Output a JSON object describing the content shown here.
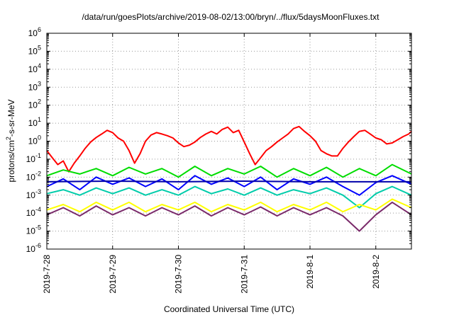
{
  "chart_data": {
    "type": "line",
    "title": "/data/run/goesPlots/archive/2019-08-02/13:00/bryn/../flux/5daysMoonFluxes.txt",
    "xlabel": "Coordinated Universal Time (UTC)",
    "ylabel_parts": {
      "base": "protons/cm",
      "sup": "2",
      "rest": "-s-sr-MeV"
    },
    "yscale": "log",
    "ylim": [
      1e-06,
      1000000.0
    ],
    "y_ticks": [
      {
        "value": 1e-06,
        "base": "10",
        "exp": "-6"
      },
      {
        "value": 1e-05,
        "base": "10",
        "exp": "-5"
      },
      {
        "value": 0.0001,
        "base": "10",
        "exp": "-4"
      },
      {
        "value": 0.001,
        "base": "10",
        "exp": "-3"
      },
      {
        "value": 0.01,
        "base": "10",
        "exp": "-2"
      },
      {
        "value": 0.1,
        "base": "10",
        "exp": "-1"
      },
      {
        "value": 1.0,
        "base": "10",
        "exp": "0"
      },
      {
        "value": 10.0,
        "base": "10",
        "exp": "1"
      },
      {
        "value": 100.0,
        "base": "10",
        "exp": "2"
      },
      {
        "value": 1000.0,
        "base": "10",
        "exp": "3"
      },
      {
        "value": 10000.0,
        "base": "10",
        "exp": "4"
      },
      {
        "value": 100000.0,
        "base": "10",
        "exp": "5"
      },
      {
        "value": 1000000.0,
        "base": "10",
        "exp": "6"
      }
    ],
    "xlim": [
      "2019-07-28",
      "2019-08-02 13:00"
    ],
    "x_ticks": [
      "2019-7-28",
      "2019-7-29",
      "2019-7-30",
      "2019-7-31",
      "2019-8-1",
      "2019-8-2"
    ],
    "grid": true,
    "series": [
      {
        "color": "#ff0000",
        "x": [
          "2019-07-28 00:00",
          "2019-07-28 02:00",
          "2019-07-28 04:00",
          "2019-07-28 06:00",
          "2019-07-28 08:00",
          "2019-07-28 10:00",
          "2019-07-28 12:00",
          "2019-07-28 14:00",
          "2019-07-28 16:00",
          "2019-07-28 18:00",
          "2019-07-28 20:00",
          "2019-07-28 22:00",
          "2019-07-29 00:00",
          "2019-07-29 02:00",
          "2019-07-29 04:00",
          "2019-07-29 06:00",
          "2019-07-29 08:00",
          "2019-07-29 10:00",
          "2019-07-29 12:00",
          "2019-07-29 14:00",
          "2019-07-29 16:00",
          "2019-07-29 18:00",
          "2019-07-29 20:00",
          "2019-07-29 22:00",
          "2019-07-30 00:00",
          "2019-07-30 02:00",
          "2019-07-30 04:00",
          "2019-07-30 06:00",
          "2019-07-30 08:00",
          "2019-07-30 10:00",
          "2019-07-30 12:00",
          "2019-07-30 14:00",
          "2019-07-30 16:00",
          "2019-07-30 18:00",
          "2019-07-30 20:00",
          "2019-07-30 22:00",
          "2019-07-31 00:00",
          "2019-07-31 02:00",
          "2019-07-31 04:00",
          "2019-07-31 06:00",
          "2019-07-31 08:00",
          "2019-07-31 10:00",
          "2019-07-31 12:00",
          "2019-07-31 14:00",
          "2019-07-31 16:00",
          "2019-07-31 18:00",
          "2019-07-31 20:00",
          "2019-07-31 22:00",
          "2019-08-01 00:00",
          "2019-08-01 02:00",
          "2019-08-01 04:00",
          "2019-08-01 06:00",
          "2019-08-01 08:00",
          "2019-08-01 10:00",
          "2019-08-01 12:00",
          "2019-08-01 14:00",
          "2019-08-01 16:00",
          "2019-08-01 18:00",
          "2019-08-01 20:00",
          "2019-08-01 22:00",
          "2019-08-02 00:00",
          "2019-08-02 02:00",
          "2019-08-02 04:00",
          "2019-08-02 06:00",
          "2019-08-02 08:00",
          "2019-08-02 10:00",
          "2019-08-02 12:00",
          "2019-08-02 13:00"
        ],
        "values": [
          0.3,
          0.12,
          0.05,
          0.08,
          0.02,
          0.06,
          0.15,
          0.4,
          0.9,
          1.6,
          2.5,
          4.0,
          3.0,
          1.5,
          1.0,
          0.3,
          0.06,
          0.2,
          1.0,
          2.2,
          3.0,
          2.5,
          2.0,
          1.5,
          0.8,
          0.5,
          0.6,
          0.9,
          1.6,
          2.5,
          3.5,
          2.5,
          4.5,
          6.0,
          3.0,
          4.0,
          0.9,
          0.2,
          0.05,
          0.12,
          0.3,
          0.5,
          0.9,
          1.5,
          2.5,
          5.0,
          6.5,
          3.5,
          2.0,
          1.0,
          0.3,
          0.2,
          0.15,
          0.15,
          0.4,
          0.9,
          1.8,
          3.5,
          4.0,
          2.5,
          1.5,
          1.2,
          0.7,
          0.8,
          1.2,
          1.8,
          2.5,
          3.5
        ]
      },
      {
        "color": "#00dd00",
        "x": [
          "2019-07-28 00:00",
          "2019-07-28 06:00",
          "2019-07-28 12:00",
          "2019-07-28 18:00",
          "2019-07-29 00:00",
          "2019-07-29 06:00",
          "2019-07-29 12:00",
          "2019-07-29 18:00",
          "2019-07-30 00:00",
          "2019-07-30 06:00",
          "2019-07-30 12:00",
          "2019-07-30 18:00",
          "2019-07-31 00:00",
          "2019-07-31 06:00",
          "2019-07-31 12:00",
          "2019-07-31 18:00",
          "2019-08-01 00:00",
          "2019-08-01 06:00",
          "2019-08-01 12:00",
          "2019-08-01 18:00",
          "2019-08-02 00:00",
          "2019-08-02 06:00",
          "2019-08-02 13:00"
        ],
        "values": [
          0.012,
          0.025,
          0.015,
          0.03,
          0.012,
          0.035,
          0.015,
          0.03,
          0.01,
          0.04,
          0.012,
          0.03,
          0.015,
          0.04,
          0.01,
          0.03,
          0.012,
          0.035,
          0.01,
          0.03,
          0.012,
          0.05,
          0.015
        ]
      },
      {
        "color": "#0000ff",
        "x": [
          "2019-07-28 00:00",
          "2019-07-28 06:00",
          "2019-07-28 12:00",
          "2019-07-28 18:00",
          "2019-07-29 00:00",
          "2019-07-29 06:00",
          "2019-07-29 12:00",
          "2019-07-29 18:00",
          "2019-07-30 00:00",
          "2019-07-30 06:00",
          "2019-07-30 12:00",
          "2019-07-30 18:00",
          "2019-07-31 00:00",
          "2019-07-31 06:00",
          "2019-07-31 12:00",
          "2019-07-31 18:00",
          "2019-08-01 00:00",
          "2019-08-01 06:00",
          "2019-08-01 12:00",
          "2019-08-01 18:00",
          "2019-08-02 00:00",
          "2019-08-02 06:00",
          "2019-08-02 13:00"
        ],
        "values": [
          0.003,
          0.008,
          0.002,
          0.01,
          0.004,
          0.009,
          0.003,
          0.008,
          0.002,
          0.012,
          0.004,
          0.009,
          0.003,
          0.01,
          0.002,
          0.008,
          0.004,
          0.01,
          0.003,
          0.001,
          0.005,
          0.012,
          0.004
        ]
      },
      {
        "color": "#0000aa",
        "x": [
          "2019-07-28 00:00",
          "2019-07-29 00:00",
          "2019-07-30 00:00",
          "2019-07-31 00:00",
          "2019-08-01 00:00",
          "2019-08-02 00:00",
          "2019-08-02 13:00"
        ],
        "values": [
          0.0055,
          0.006,
          0.0055,
          0.006,
          0.0055,
          0.0055,
          0.0055
        ]
      },
      {
        "color": "#00ccaa",
        "x": [
          "2019-07-28 00:00",
          "2019-07-28 06:00",
          "2019-07-28 12:00",
          "2019-07-28 18:00",
          "2019-07-29 00:00",
          "2019-07-29 06:00",
          "2019-07-29 12:00",
          "2019-07-29 18:00",
          "2019-07-30 00:00",
          "2019-07-30 06:00",
          "2019-07-30 12:00",
          "2019-07-30 18:00",
          "2019-07-31 00:00",
          "2019-07-31 06:00",
          "2019-07-31 12:00",
          "2019-07-31 18:00",
          "2019-08-01 00:00",
          "2019-08-01 06:00",
          "2019-08-01 12:00",
          "2019-08-01 18:00",
          "2019-08-02 00:00",
          "2019-08-02 06:00",
          "2019-08-02 13:00"
        ],
        "values": [
          0.0012,
          0.002,
          0.001,
          0.0025,
          0.0012,
          0.0025,
          0.001,
          0.002,
          0.001,
          0.003,
          0.0012,
          0.0022,
          0.001,
          0.0025,
          0.001,
          0.002,
          0.0012,
          0.0025,
          0.001,
          0.0002,
          0.0012,
          0.003,
          0.001
        ]
      },
      {
        "color": "#ffff00",
        "x": [
          "2019-07-28 00:00",
          "2019-07-28 06:00",
          "2019-07-28 12:00",
          "2019-07-28 18:00",
          "2019-07-29 00:00",
          "2019-07-29 06:00",
          "2019-07-29 12:00",
          "2019-07-29 18:00",
          "2019-07-30 00:00",
          "2019-07-30 06:00",
          "2019-07-30 12:00",
          "2019-07-30 18:00",
          "2019-07-31 00:00",
          "2019-07-31 06:00",
          "2019-07-31 12:00",
          "2019-07-31 18:00",
          "2019-08-01 00:00",
          "2019-08-01 06:00",
          "2019-08-01 12:00",
          "2019-08-01 18:00",
          "2019-08-02 00:00",
          "2019-08-02 06:00",
          "2019-08-02 13:00"
        ],
        "values": [
          0.00015,
          0.0003,
          0.00012,
          0.0004,
          0.00015,
          0.0004,
          0.00012,
          0.0003,
          0.00015,
          0.0004,
          0.00012,
          0.0003,
          0.00015,
          0.0004,
          0.00012,
          0.0003,
          0.00015,
          0.0004,
          0.00012,
          0.0003,
          0.00015,
          0.0006,
          0.0002
        ]
      },
      {
        "color": "#7a2a6a",
        "x": [
          "2019-07-28 00:00",
          "2019-07-28 06:00",
          "2019-07-28 12:00",
          "2019-07-28 18:00",
          "2019-07-29 00:00",
          "2019-07-29 06:00",
          "2019-07-29 12:00",
          "2019-07-29 18:00",
          "2019-07-30 00:00",
          "2019-07-30 06:00",
          "2019-07-30 12:00",
          "2019-07-30 18:00",
          "2019-07-31 00:00",
          "2019-07-31 06:00",
          "2019-07-31 12:00",
          "2019-07-31 18:00",
          "2019-08-01 00:00",
          "2019-08-01 06:00",
          "2019-08-01 12:00",
          "2019-08-01 18:00",
          "2019-08-02 00:00",
          "2019-08-02 06:00",
          "2019-08-02 13:00"
        ],
        "values": [
          8e-05,
          0.0002,
          7e-05,
          0.00025,
          8e-05,
          0.0002,
          7e-05,
          0.0002,
          8e-05,
          0.00025,
          7e-05,
          0.0002,
          8e-05,
          0.00022,
          7e-05,
          0.0002,
          8e-05,
          0.0002,
          7e-05,
          1e-05,
          8e-05,
          0.0004,
          8e-05
        ]
      }
    ]
  }
}
